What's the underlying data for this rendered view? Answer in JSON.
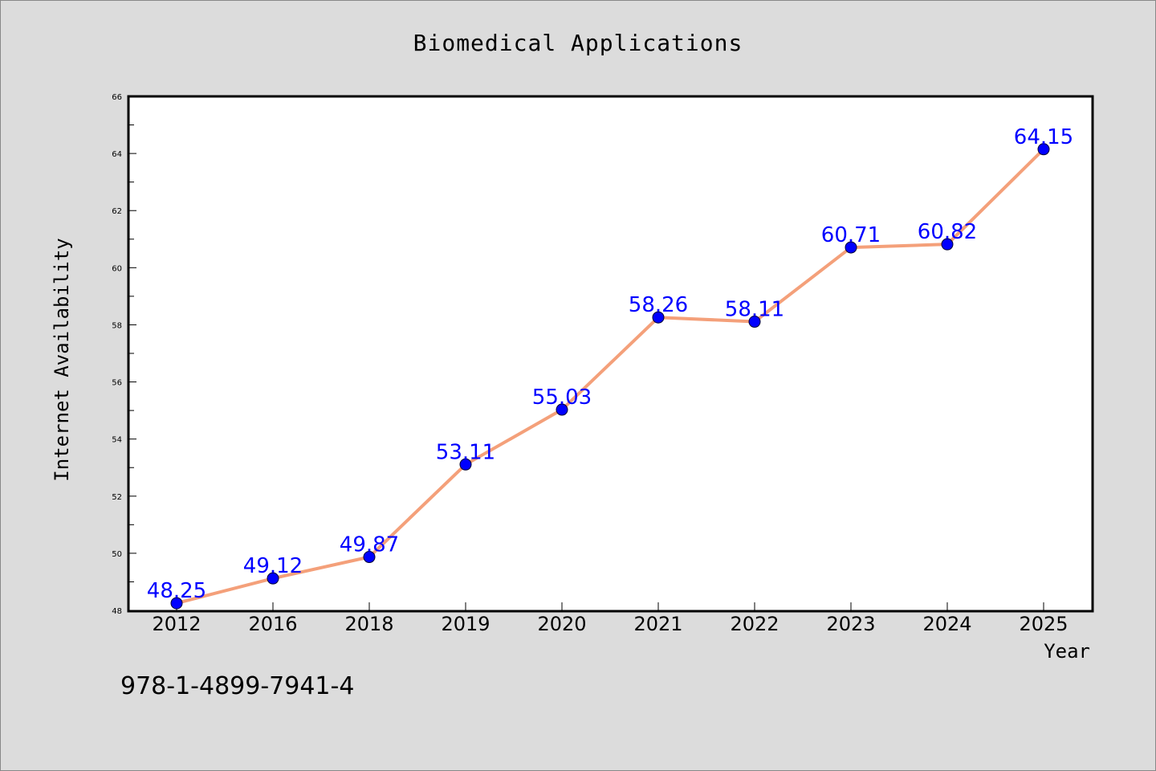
{
  "chart_data": {
    "type": "line",
    "title": "Biomedical Applications",
    "xlabel": "Year",
    "ylabel": "Internet Availability",
    "categories": [
      "2012",
      "2016",
      "2018",
      "2019",
      "2020",
      "2021",
      "2022",
      "2023",
      "2024",
      "2025"
    ],
    "series": [
      {
        "values": [
          48.25,
          49.12,
          49.87,
          53.11,
          55.03,
          58.26,
          58.11,
          60.71,
          60.82,
          64.15
        ],
        "labels": [
          "48.25",
          "49.12",
          "49.87",
          "53.11",
          "55.03",
          "58.26",
          "58.11",
          "60.71",
          "60.82",
          "64.15"
        ],
        "line_color": "#f4a07a",
        "marker_color": "#0000ff"
      }
    ],
    "ylim": [
      48,
      66
    ],
    "yticks": [
      "48",
      "50",
      "52",
      "54",
      "56",
      "58",
      "60",
      "62",
      "64",
      "66"
    ],
    "grid": false,
    "legend": "none"
  },
  "footnote": "978-1-4899-7941-4"
}
